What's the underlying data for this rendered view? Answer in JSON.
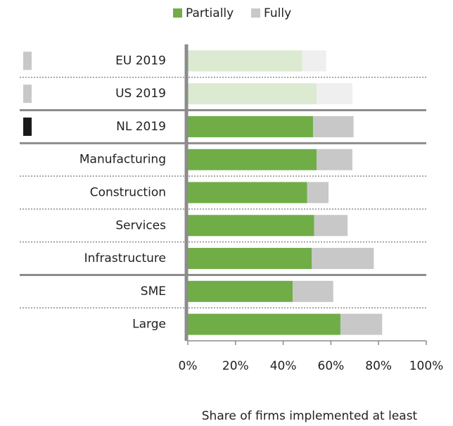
{
  "chart_data": {
    "type": "stacked_bar_horizontal",
    "categories": [
      "EU 2019",
      "US 2019",
      "NL 2019",
      "Manufacturing",
      "Construction",
      "Services",
      "Infrastructure",
      "SME",
      "Large"
    ],
    "series": [
      {
        "name": "Partially",
        "color": "#70ad47",
        "faded_color": "#dbead1",
        "values": [
          48,
          54,
          52.5,
          54,
          50,
          53,
          52,
          44,
          64
        ]
      },
      {
        "name": "Fully",
        "color": "#c8c8c8",
        "faded_color": "#efefef",
        "values": [
          10,
          15,
          17,
          15,
          9,
          14,
          26,
          17,
          17.5
        ]
      }
    ],
    "faded": [
      true,
      true,
      false,
      false,
      false,
      false,
      false,
      false,
      false
    ],
    "marker_colors": [
      "#c8c8c8",
      "#c8c8c8",
      "#1a1a1a",
      null,
      null,
      null,
      null,
      null,
      null
    ],
    "group_breaks": [
      2,
      3,
      7
    ],
    "xlim": [
      0,
      100
    ],
    "xticks": [
      {
        "value": 0,
        "label": "0%"
      },
      {
        "value": 20,
        "label": "20%"
      },
      {
        "value": 40,
        "label": "40%"
      },
      {
        "value": 60,
        "label": "60%"
      },
      {
        "value": 80,
        "label": "80%"
      },
      {
        "value": 100,
        "label": "100%"
      }
    ],
    "xlabel": "Share of firms implemented at least one digital technology",
    "legend": "top"
  }
}
